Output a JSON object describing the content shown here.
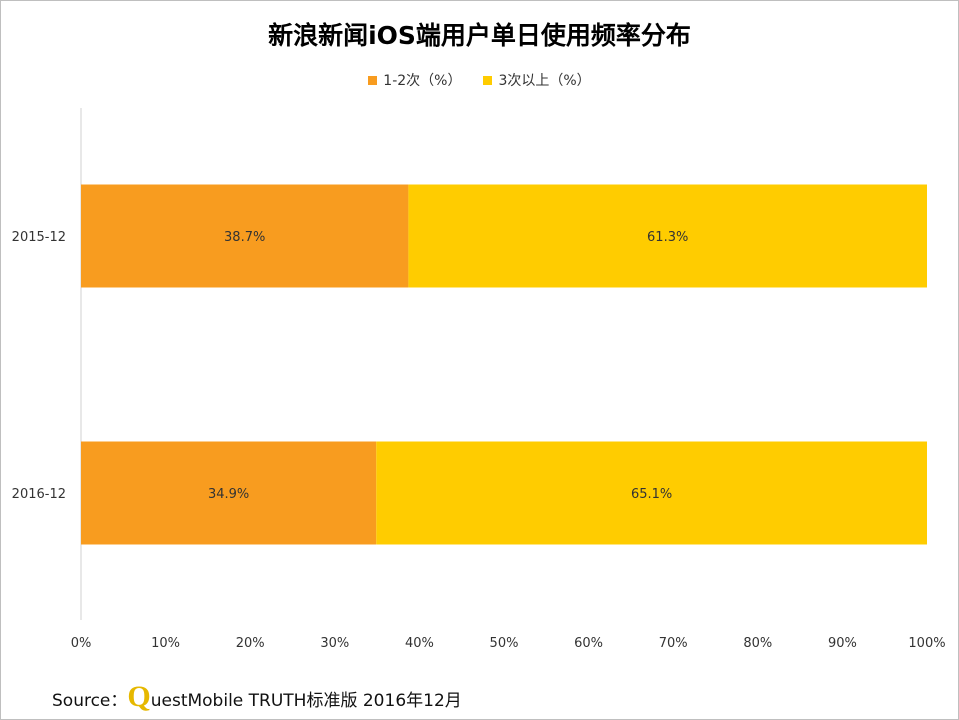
{
  "chart_data": {
    "type": "bar",
    "orientation": "horizontal",
    "stacked": true,
    "title": "新浪新闻iOS端用户单日使用频率分布",
    "categories": [
      "2015-12",
      "2016-12"
    ],
    "series": [
      {
        "name": "1-2次（%）",
        "values": [
          38.7,
          34.9
        ],
        "labels": [
          "38.7%",
          "34.9%"
        ],
        "color": "#f89c1f"
      },
      {
        "name": "3次以上（%）",
        "values": [
          61.3,
          65.1
        ],
        "labels": [
          "61.3%",
          "65.1%"
        ],
        "color": "#ffcc00"
      }
    ],
    "xlim": [
      0,
      100
    ],
    "xticks": [
      "0%",
      "10%",
      "20%",
      "30%",
      "40%",
      "50%",
      "60%",
      "70%",
      "80%",
      "90%",
      "100%"
    ],
    "legend_position": "top",
    "grid": false
  },
  "source": {
    "prefix": "Source：",
    "brand_letter": "Q",
    "text": "uestMobile TRUTH标准版 2016年12月"
  }
}
